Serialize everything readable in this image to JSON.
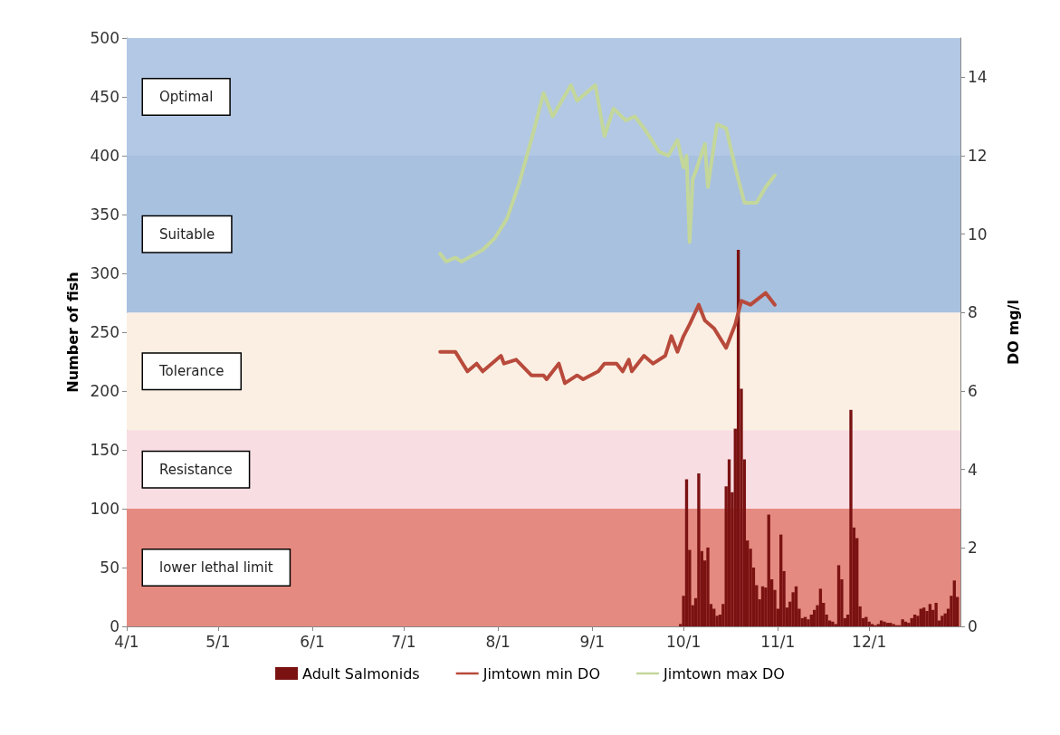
{
  "chart_data": {
    "type": "bar",
    "ylabel": "Number of fish",
    "y2label": "DO mg/l",
    "xlim": [
      "--04-01",
      "--12-31"
    ],
    "xticks": [
      {
        "value": "--04-01",
        "label": "4/1"
      },
      {
        "value": "--05-01",
        "label": "5/1"
      },
      {
        "value": "--06-01",
        "label": "6/1"
      },
      {
        "value": "--07-01",
        "label": "7/1"
      },
      {
        "value": "--08-01",
        "label": "8/1"
      },
      {
        "value": "--09-01",
        "label": "9/1"
      },
      {
        "value": "--10-01",
        "label": "10/1"
      },
      {
        "value": "--11-01",
        "label": "11/1"
      },
      {
        "value": "--12-01",
        "label": "12/1"
      }
    ],
    "ylim": [
      0,
      500
    ],
    "yticks": [
      0,
      50,
      100,
      150,
      200,
      250,
      300,
      350,
      400,
      450,
      500
    ],
    "y2lim": [
      0,
      15
    ],
    "y2ticks": [
      0,
      2,
      4,
      6,
      8,
      10,
      12,
      14
    ],
    "grid": false,
    "legend": "bottom",
    "bands": [
      {
        "axis": "y2",
        "from": 0,
        "to": 3,
        "label": "lower lethal limit",
        "color": "#e58a80"
      },
      {
        "axis": "y2",
        "from": 3,
        "to": 5,
        "label": "Resistance",
        "color": "#f8dde2"
      },
      {
        "axis": "y2",
        "from": 5,
        "to": 8,
        "label": "Tolerance",
        "color": "#fbefe3"
      },
      {
        "axis": "y2",
        "from": 8,
        "to": 12,
        "label": "Suitable",
        "color": "#a8c1df"
      },
      {
        "axis": "y2",
        "from": 12,
        "to": 15,
        "label": "Optimal",
        "color": "#b2c8e4"
      }
    ],
    "series": [
      {
        "name": "Adult Salmonids",
        "color": "#7a1212",
        "x": [
          "--09-30",
          "--10-01",
          "--10-02",
          "--10-03",
          "--10-04",
          "--10-05",
          "--10-06",
          "--10-07",
          "--10-08",
          "--10-09",
          "--10-10",
          "--10-11",
          "--10-12",
          "--10-13",
          "--10-14",
          "--10-15",
          "--10-16",
          "--10-17",
          "--10-18",
          "--10-19",
          "--10-20",
          "--10-21",
          "--10-22",
          "--10-23",
          "--10-24",
          "--10-25",
          "--10-26",
          "--10-27",
          "--10-28",
          "--10-29",
          "--10-30",
          "--10-31",
          "--11-01",
          "--11-02",
          "--11-03",
          "--11-04",
          "--11-05",
          "--11-06",
          "--11-07",
          "--11-08",
          "--11-09",
          "--11-10",
          "--11-11",
          "--11-12",
          "--11-13",
          "--11-14",
          "--11-15",
          "--11-16",
          "--11-17",
          "--11-18",
          "--11-19",
          "--11-20",
          "--11-21",
          "--11-22",
          "--11-23",
          "--11-24",
          "--11-25",
          "--11-26",
          "--11-27",
          "--11-28",
          "--11-29",
          "--11-30",
          "--12-01",
          "--12-02",
          "--12-03",
          "--12-04",
          "--12-05",
          "--12-06",
          "--12-07",
          "--12-08",
          "--12-09",
          "--12-10",
          "--12-11",
          "--12-12",
          "--12-13",
          "--12-14",
          "--12-15",
          "--12-16",
          "--12-17",
          "--12-18",
          "--12-19",
          "--12-20",
          "--12-21",
          "--12-22",
          "--12-23",
          "--12-24",
          "--12-25",
          "--12-26",
          "--12-27",
          "--12-28",
          "--12-29",
          "--12-30"
        ],
        "values": [
          2,
          26,
          125,
          65,
          18,
          24,
          130,
          64,
          56,
          67,
          19,
          15,
          9,
          10,
          19,
          119,
          142,
          114,
          168,
          320,
          202,
          142,
          73,
          66,
          50,
          35,
          23,
          34,
          33,
          95,
          40,
          31,
          15,
          78,
          47,
          16,
          21,
          29,
          34,
          15,
          7,
          8,
          6,
          10,
          14,
          18,
          32,
          20,
          10,
          5,
          4,
          2,
          52,
          40,
          7,
          10,
          184,
          84,
          75,
          17,
          7,
          8,
          4,
          2,
          1,
          2,
          5,
          4,
          3,
          3,
          2,
          1,
          1,
          6,
          4,
          3,
          7,
          10,
          9,
          15,
          16,
          13,
          19,
          14,
          20,
          5,
          9,
          11,
          15,
          26,
          39,
          25
        ]
      },
      {
        "name": "Jimtown min DO",
        "type": "line",
        "axis": "y2",
        "color": "#b84a3c",
        "x": [
          "--07-13",
          "--07-18",
          "--07-22",
          "--07-25",
          "--07-27",
          "--08-02",
          "--08-03",
          "--08-07",
          "--08-12",
          "--08-16",
          "--08-17",
          "--08-21",
          "--08-23",
          "--08-27",
          "--08-29",
          "--09-03",
          "--09-05",
          "--09-09",
          "--09-11",
          "--09-13",
          "--09-14",
          "--09-18",
          "--09-21",
          "--09-25",
          "--09-27",
          "--09-29",
          "--10-01",
          "--10-03",
          "--10-06",
          "--10-08",
          "--10-11",
          "--10-15",
          "--10-18",
          "--10-20",
          "--10-23",
          "--10-28",
          "--10-31"
        ],
        "values": [
          7.0,
          7.0,
          6.5,
          6.7,
          6.5,
          6.9,
          6.7,
          6.8,
          6.4,
          6.4,
          6.3,
          6.7,
          6.2,
          6.4,
          6.3,
          6.5,
          6.7,
          6.7,
          6.5,
          6.8,
          6.5,
          6.9,
          6.7,
          6.9,
          7.4,
          7.0,
          7.4,
          7.7,
          8.2,
          7.8,
          7.6,
          7.1,
          7.7,
          8.3,
          8.2,
          8.5,
          8.2
        ]
      },
      {
        "name": "Jimtown max DO",
        "type": "line",
        "axis": "y2",
        "color": "#c4d79b",
        "x": [
          "--07-13",
          "--07-15",
          "--07-18",
          "--07-20",
          "--07-27",
          "--07-31",
          "--08-04",
          "--08-08",
          "--08-13",
          "--08-16",
          "--08-19",
          "--08-22",
          "--08-25",
          "--08-27",
          "--08-30",
          "--09-02",
          "--09-05",
          "--09-08",
          "--09-12",
          "--09-15",
          "--09-18",
          "--09-23",
          "--09-26",
          "--09-29",
          "--10-01",
          "--10-02",
          "--10-03",
          "--10-04",
          "--10-05",
          "--10-08",
          "--10-09",
          "--10-12",
          "--10-15",
          "--10-18",
          "--10-21",
          "--10-25",
          "--10-28",
          "--10-31"
        ],
        "values": [
          9.5,
          9.3,
          9.4,
          9.3,
          9.6,
          9.9,
          10.4,
          11.3,
          12.7,
          13.6,
          13.0,
          13.4,
          13.8,
          13.4,
          13.6,
          13.8,
          12.5,
          13.2,
          12.9,
          13.0,
          12.7,
          12.1,
          12.0,
          12.4,
          11.7,
          12.0,
          9.8,
          11.4,
          11.6,
          12.3,
          11.2,
          12.8,
          12.7,
          11.7,
          10.8,
          10.8,
          11.2,
          11.5
        ]
      }
    ]
  }
}
